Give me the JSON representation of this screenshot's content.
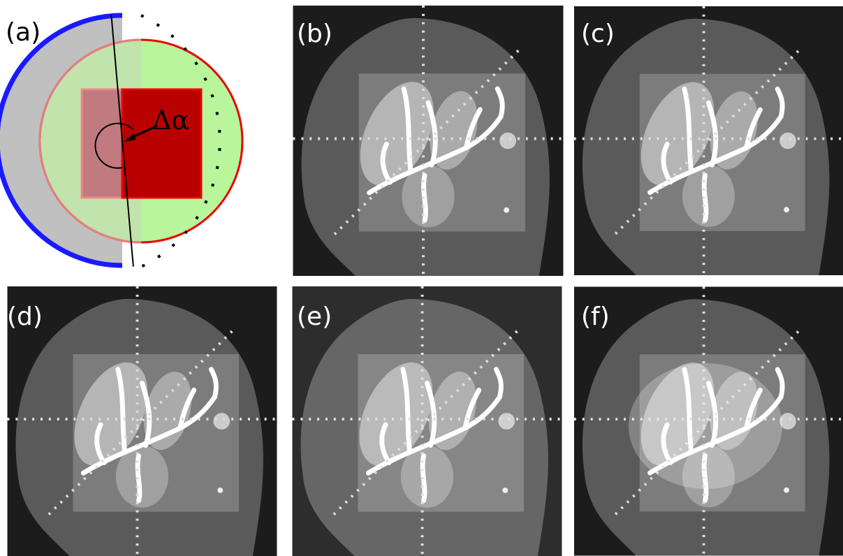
{
  "panels": [
    {
      "label": "(a)"
    },
    {
      "label": "(b)"
    },
    {
      "label": "(c)"
    },
    {
      "label": "(d)"
    },
    {
      "label": "(e)"
    },
    {
      "label": "(f)"
    }
  ],
  "diagram": {
    "angle_label": "Δα"
  }
}
